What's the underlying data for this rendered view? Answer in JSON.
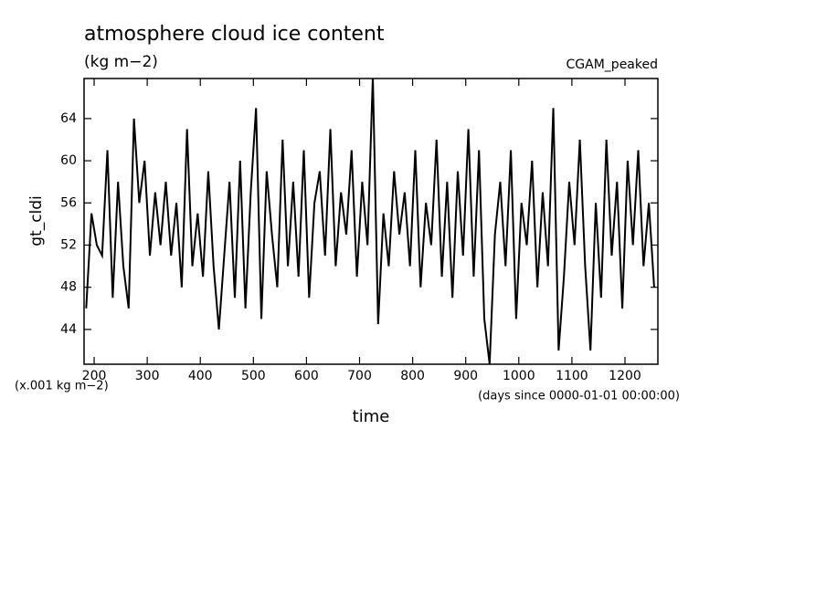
{
  "chart_data": {
    "type": "line",
    "title": "atmosphere cloud ice content",
    "subtitle": "(kg m−2)",
    "annotation": "CGAM_peaked",
    "ylabel": "gt_cldi",
    "xlabel": "time",
    "y_unit_note": "(x.001 kg m−2)",
    "x_unit_note": "(days since 0000-01-01 00:00:00)",
    "x": [
      185,
      195,
      205,
      215,
      225,
      235,
      245,
      255,
      265,
      275,
      285,
      295,
      305,
      315,
      325,
      335,
      345,
      355,
      365,
      375,
      385,
      395,
      405,
      415,
      425,
      435,
      445,
      455,
      465,
      475,
      485,
      495,
      505,
      515,
      525,
      535,
      545,
      555,
      565,
      575,
      585,
      595,
      605,
      615,
      625,
      635,
      645,
      655,
      665,
      675,
      685,
      695,
      705,
      715,
      725,
      735,
      745,
      755,
      765,
      775,
      785,
      795,
      805,
      815,
      825,
      835,
      845,
      855,
      865,
      875,
      885,
      895,
      905,
      915,
      925,
      935,
      945,
      955,
      965,
      975,
      985,
      995,
      1005,
      1015,
      1025,
      1035,
      1045,
      1055,
      1065,
      1075,
      1085,
      1095,
      1105,
      1115,
      1125,
      1135,
      1145,
      1155,
      1165,
      1175,
      1185,
      1195,
      1205,
      1215,
      1225,
      1235,
      1245,
      1255
    ],
    "series": [
      {
        "color": "#000000",
        "values": [
          46,
          55,
          52,
          51,
          61,
          47,
          58,
          50,
          46,
          64,
          56,
          60,
          51,
          57,
          52,
          58,
          51,
          56,
          48,
          63,
          50,
          55,
          49,
          59,
          50,
          44,
          51,
          58,
          47,
          60,
          46,
          57,
          65,
          45,
          59,
          53,
          48,
          62,
          50,
          58,
          49,
          61,
          47,
          56,
          59,
          51,
          63,
          50,
          57,
          53,
          61,
          49,
          58,
          52,
          68,
          44.5,
          55,
          50,
          59,
          53,
          57,
          50,
          61,
          48,
          56,
          52,
          62,
          49,
          58,
          47,
          59,
          51,
          63,
          49,
          61,
          45,
          40.7,
          53,
          58,
          50,
          61,
          45,
          56,
          52,
          60,
          48,
          57,
          50,
          65,
          42,
          49,
          58,
          52,
          62,
          50,
          42,
          56,
          47,
          62,
          51,
          58,
          46,
          60,
          52,
          61,
          50,
          56,
          48
        ]
      }
    ],
    "xlim": [
      181,
      1262
    ],
    "ylim": [
      40.7,
      67.8
    ],
    "xticks": [
      200,
      300,
      400,
      500,
      600,
      700,
      800,
      900,
      1000,
      1100,
      1200
    ],
    "yticks": [
      44,
      48,
      52,
      56,
      60,
      64
    ]
  }
}
